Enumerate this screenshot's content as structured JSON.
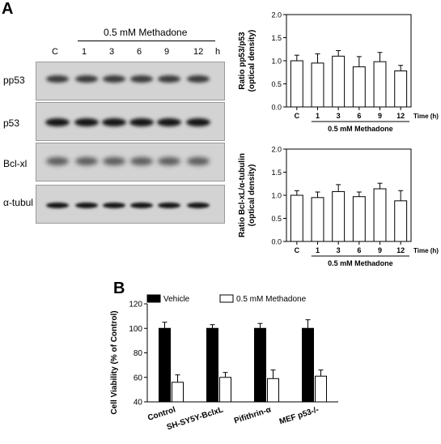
{
  "panel_a": {
    "label": "A",
    "treatment": "0.5 mM Methadone",
    "lanes": [
      "C",
      "1",
      "3",
      "6",
      "9",
      "12"
    ],
    "time_unit": "h",
    "blots": [
      {
        "name": "pp53",
        "label": "pp53"
      },
      {
        "name": "p53",
        "label": "p53"
      },
      {
        "name": "bcl-xl",
        "label": "Bcl-xl"
      },
      {
        "name": "alpha-tubulin",
        "label": "α-tubul"
      }
    ]
  },
  "panel_b_label": "B",
  "chart_data": [
    {
      "type": "bar",
      "ylabel_line1": "Ratio pp53/p53",
      "ylabel_line2": "(optical density)",
      "xlabel": "Time (h)",
      "group_label": "0.5 mM Methadone",
      "categories": [
        "C",
        "1",
        "3",
        "6",
        "9",
        "12"
      ],
      "values": [
        1.0,
        0.95,
        1.1,
        0.87,
        0.98,
        0.78
      ],
      "errors": [
        0.12,
        0.2,
        0.12,
        0.22,
        0.2,
        0.12
      ],
      "ylim": [
        0,
        2.0
      ],
      "yticks": [
        "0.0",
        "0.5",
        "1.0",
        "1.5",
        "2.0"
      ],
      "yticks_num": [
        0,
        0.5,
        1.0,
        1.5,
        2.0
      ]
    },
    {
      "type": "bar",
      "ylabel_line1": "Ratio Bcl-xL/α-tubulin",
      "ylabel_line2": "(optical density)",
      "xlabel": "Time (h)",
      "group_label": "0.5 mM Methadone",
      "categories": [
        "C",
        "1",
        "3",
        "6",
        "9",
        "12"
      ],
      "values": [
        1.0,
        0.95,
        1.08,
        0.97,
        1.14,
        0.88
      ],
      "errors": [
        0.1,
        0.12,
        0.15,
        0.1,
        0.12,
        0.22
      ],
      "ylim": [
        0,
        2.0
      ],
      "yticks": [
        "0.0",
        "0.5",
        "1.0",
        "1.5",
        "2.0"
      ],
      "yticks_num": [
        0,
        0.5,
        1.0,
        1.5,
        2.0
      ]
    },
    {
      "type": "bar",
      "ylabel": "Cell Viability (% of Control)",
      "categories": [
        "Control",
        "SH-SY5Y-BclxL",
        "Pifithrin-α",
        "MEF p53-/-"
      ],
      "series": [
        {
          "name": "Vehicle",
          "values": [
            100,
            100,
            100,
            100
          ],
          "errors": [
            5,
            3,
            4,
            7
          ],
          "color": "#000000"
        },
        {
          "name": "0.5 mM Methadone",
          "values": [
            56,
            60,
            59,
            61
          ],
          "errors": [
            6,
            4,
            7,
            5
          ],
          "color": "#ffffff"
        }
      ],
      "ylim": [
        40,
        120
      ],
      "yticks": [
        "40",
        "60",
        "80",
        "100",
        "120"
      ],
      "yticks_num": [
        40,
        60,
        80,
        100,
        120
      ]
    }
  ]
}
